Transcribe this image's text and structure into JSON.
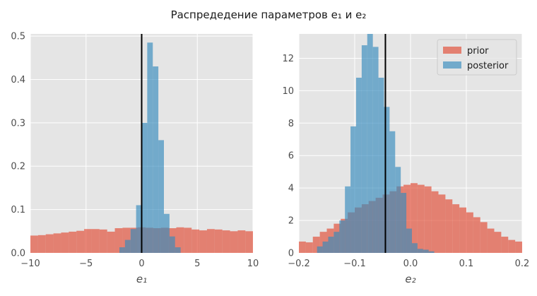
{
  "figure": {
    "title": "Распредедение параметров e₁ и e₂"
  },
  "colors": {
    "prior": "#E24A33",
    "posterior": "#348ABD",
    "axes_bg": "#E5E5E5",
    "grid": "#FFFFFF",
    "vline": "#000000"
  },
  "chart_data": [
    {
      "type": "histogram",
      "xlabel": "e₁",
      "xlim": [
        -10,
        10
      ],
      "ylim": [
        0,
        0.505
      ],
      "xticks": [
        -10,
        -5,
        0,
        5,
        10
      ],
      "xtick_labels": [
        "−10",
        "−5",
        "0",
        "5",
        "10"
      ],
      "yticks": [
        0.0,
        0.1,
        0.2,
        0.3,
        0.4,
        0.5
      ],
      "ytick_labels": [
        "0.0",
        "0.1",
        "0.2",
        "0.3",
        "0.4",
        "0.5"
      ],
      "grid": true,
      "vline_x": 0,
      "series": [
        {
          "key": "prior",
          "bin_start": -10,
          "bin_width": 0.69,
          "values": [
            0.04,
            0.041,
            0.043,
            0.045,
            0.047,
            0.049,
            0.051,
            0.055,
            0.055,
            0.054,
            0.049,
            0.057,
            0.058,
            0.058,
            0.059,
            0.058,
            0.057,
            0.058,
            0.057,
            0.059,
            0.058,
            0.054,
            0.052,
            0.055,
            0.054,
            0.052,
            0.05,
            0.052,
            0.05,
            0.044
          ]
        },
        {
          "key": "posterior",
          "bin_start": -2.0,
          "bin_width": 0.5,
          "values": [
            0.013,
            0.03,
            0.055,
            0.11,
            0.3,
            0.485,
            0.43,
            0.26,
            0.09,
            0.038,
            0.013
          ]
        }
      ]
    },
    {
      "type": "histogram",
      "xlabel": "e₂",
      "xlim": [
        -0.2,
        0.2
      ],
      "ylim": [
        0,
        13.5
      ],
      "xticks": [
        -0.2,
        -0.1,
        0.0,
        0.1,
        0.2
      ],
      "xtick_labels": [
        "−0.2",
        "−0.1",
        "0.0",
        "0.1",
        "0.2"
      ],
      "yticks": [
        0,
        2,
        4,
        6,
        8,
        10,
        12
      ],
      "ytick_labels": [
        "0",
        "2",
        "4",
        "6",
        "8",
        "10",
        "12"
      ],
      "grid": true,
      "vline_x": -0.045,
      "legend": {
        "position": "top-right",
        "entries": [
          "prior",
          "posterior"
        ]
      },
      "series": [
        {
          "key": "prior",
          "name": "prior",
          "bin_start": -0.2,
          "bin_width": 0.0125,
          "values": [
            0.7,
            0.65,
            1.0,
            1.3,
            1.5,
            1.8,
            2.1,
            2.5,
            2.8,
            3.0,
            3.2,
            3.4,
            3.6,
            3.8,
            4.1,
            4.2,
            4.3,
            4.2,
            4.1,
            3.8,
            3.6,
            3.3,
            3.0,
            2.8,
            2.5,
            2.2,
            1.9,
            1.5,
            1.3,
            1.0,
            0.8,
            0.7
          ]
        },
        {
          "key": "posterior",
          "name": "posterior",
          "bin_start": -0.1875,
          "bin_width": 0.01,
          "values": [
            0.0,
            0.0,
            0.4,
            0.7,
            1.0,
            1.3,
            2.0,
            4.1,
            7.8,
            10.8,
            12.8,
            13.5,
            12.7,
            10.8,
            9.0,
            7.5,
            5.3,
            3.7,
            1.5,
            0.6,
            0.25,
            0.2,
            0.1
          ]
        }
      ]
    }
  ]
}
